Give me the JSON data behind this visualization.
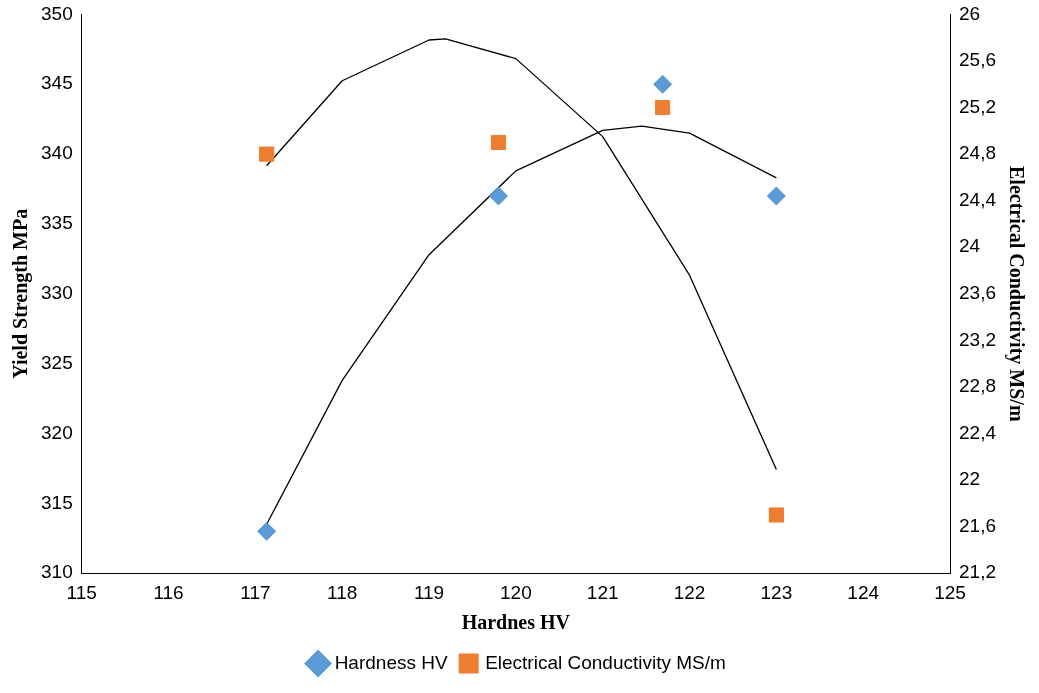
{
  "chart_data": {
    "type": "scatter",
    "xlabel": "Hardnes HV",
    "ylabel": "Yield Strength MPa",
    "y2label": "Electrical Conductivity MS/m",
    "xlim": [
      115,
      125
    ],
    "xticks": [
      115,
      116,
      117,
      118,
      119,
      120,
      121,
      122,
      123,
      124,
      125
    ],
    "ylim": [
      310,
      350
    ],
    "yticks": [
      310,
      315,
      320,
      325,
      330,
      335,
      340,
      345,
      350
    ],
    "y2lim": [
      21.2,
      26
    ],
    "y2ticks": [
      {
        "value": 21.2,
        "label": "21,2"
      },
      {
        "value": 21.6,
        "label": "21,6"
      },
      22,
      {
        "value": 22.4,
        "label": "22,4"
      },
      {
        "value": 22.8,
        "label": "22,8"
      },
      {
        "value": 23.2,
        "label": "23,2"
      },
      {
        "value": 23.6,
        "label": "23,6"
      },
      24,
      {
        "value": 24.4,
        "label": "24,4"
      },
      {
        "value": 24.8,
        "label": "24,8"
      },
      {
        "value": 25.2,
        "label": "25,2"
      },
      {
        "value": 25.6,
        "label": "25,6"
      },
      26
    ],
    "grid": false,
    "legend": "bottom",
    "series": [
      {
        "name": "Hardness HV",
        "type": "scatter",
        "marker": "diamond",
        "color": "#5b9bd5",
        "x": [
          117.13,
          119.8,
          121.69,
          123.0
        ],
        "values": [
          313,
          337,
          345,
          337
        ]
      },
      {
        "name": "Electrical Conductivity MS/m",
        "type": "scatter",
        "marker": "square",
        "axis": "y2",
        "color": "#ed7d31",
        "x": [
          117.13,
          119.8,
          121.69,
          123.0
        ],
        "values": [
          24.8,
          24.9,
          25.2,
          21.7
        ]
      },
      {
        "type": "line",
        "marker": "none",
        "color": "#000000",
        "x": [
          117.13,
          118,
          119,
          120,
          121,
          121.45,
          122,
          123
        ],
        "values": [
          313.5,
          323.8,
          332.8,
          338.8,
          341.7,
          342.0,
          341.5,
          338.3
        ]
      },
      {
        "type": "line",
        "marker": "none",
        "axis": "y2",
        "color": "#000000",
        "x": [
          117.13,
          118,
          119,
          119.19,
          120,
          121,
          122,
          123
        ],
        "values": [
          24.7,
          25.43,
          25.78,
          25.79,
          25.62,
          24.95,
          23.76,
          22.09
        ]
      }
    ]
  }
}
